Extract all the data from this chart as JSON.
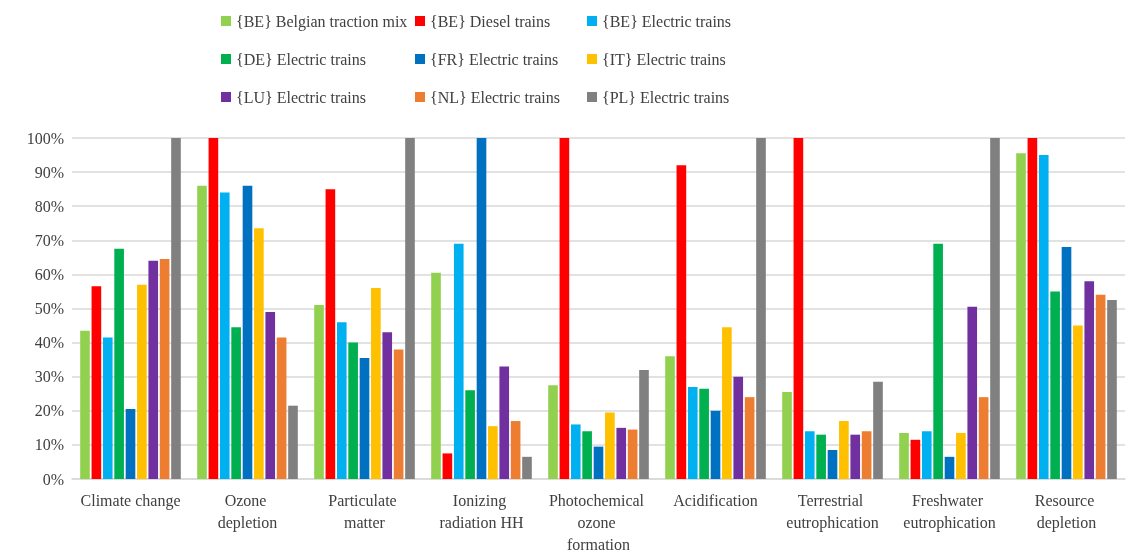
{
  "chart_data": {
    "type": "bar",
    "categories": [
      "Climate change",
      "Ozone depletion",
      "Particulate matter",
      "Ionizing radiation HH",
      "Photochemical ozone formation",
      "Acidification",
      "Terrestrial eutrophication",
      "Freshwater eutrophication",
      "Resource depletion"
    ],
    "series": [
      {
        "name": "{BE} Belgian traction mix",
        "color": "#92d050",
        "values": [
          43.5,
          86,
          51,
          60.5,
          27.5,
          36,
          25.5,
          13.5,
          95.5
        ]
      },
      {
        "name": "{BE} Diesel trains",
        "color": "#ff0000",
        "values": [
          56.5,
          100,
          85,
          7.5,
          100,
          92,
          100,
          11.5,
          100
        ]
      },
      {
        "name": "{BE} Electric trains",
        "color": "#00b0f0",
        "values": [
          41.5,
          84,
          46,
          69,
          16,
          27,
          14,
          14,
          95
        ]
      },
      {
        "name": "{DE} Electric trains",
        "color": "#00b050",
        "values": [
          67.5,
          44.5,
          40,
          26,
          14,
          26.5,
          13,
          69,
          55
        ]
      },
      {
        "name": "{FR} Electric trains",
        "color": "#0070c0",
        "values": [
          20.5,
          86,
          35.5,
          100,
          9.5,
          20,
          8.5,
          6.5,
          68
        ]
      },
      {
        "name": "{IT} Electric trains",
        "color": "#ffc000",
        "values": [
          57,
          73.5,
          56,
          15.5,
          19.5,
          44.5,
          17,
          13.5,
          45
        ]
      },
      {
        "name": "{LU} Electric trains",
        "color": "#7030a0",
        "values": [
          64,
          49,
          43,
          33,
          15,
          30,
          13,
          50.5,
          58
        ]
      },
      {
        "name": "{NL} Electric trains",
        "color": "#ed7d31",
        "values": [
          64.5,
          41.5,
          38,
          17,
          14.5,
          24,
          14,
          24,
          54
        ]
      },
      {
        "name": "{PL} Electric trains",
        "color": "#808080",
        "values": [
          100,
          21.5,
          100,
          6.5,
          32,
          100,
          28.5,
          100,
          52.5
        ]
      }
    ],
    "ylim": [
      0,
      100
    ],
    "yticks": [
      {
        "value": 0,
        "label": "0%"
      },
      {
        "value": 10,
        "label": "10%"
      },
      {
        "value": 20,
        "label": "20%"
      },
      {
        "value": 30,
        "label": "30%"
      },
      {
        "value": 40,
        "label": "40%"
      },
      {
        "value": 50,
        "label": "50%"
      },
      {
        "value": 60,
        "label": "60%"
      },
      {
        "value": 70,
        "label": "70%"
      },
      {
        "value": 80,
        "label": "80%"
      },
      {
        "value": 90,
        "label": "90%"
      },
      {
        "value": 100,
        "label": "100%"
      }
    ],
    "grid": "y",
    "legend": "top"
  }
}
